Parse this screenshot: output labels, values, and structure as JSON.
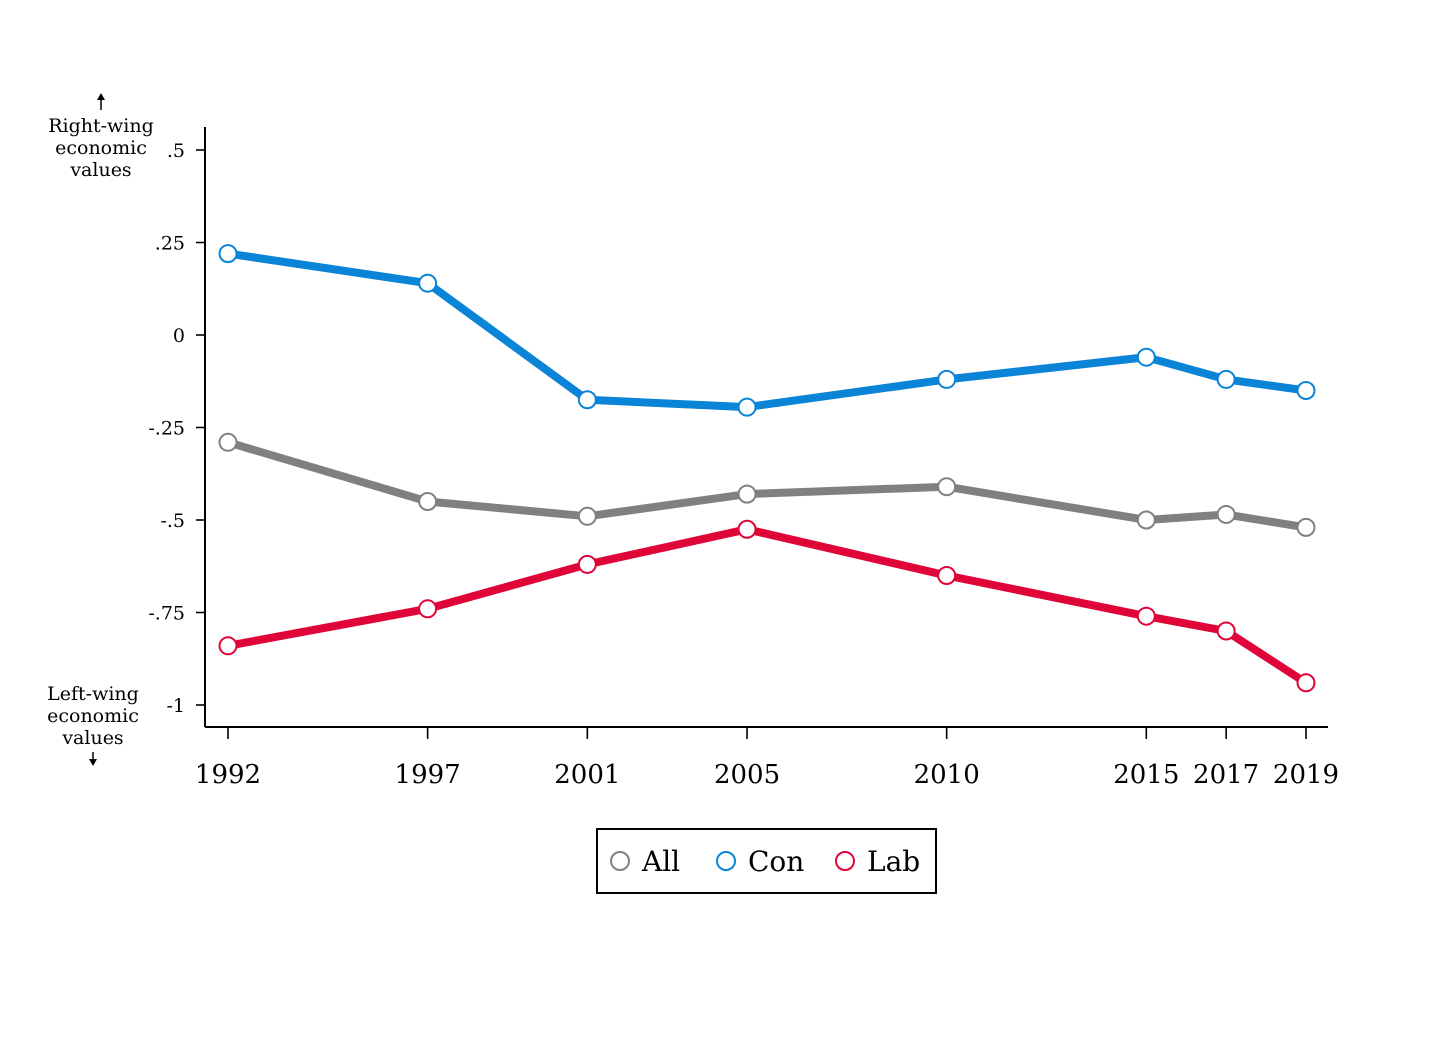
{
  "chart_data": {
    "type": "line",
    "x": [
      1992,
      1997,
      2001,
      2005,
      2010,
      2015,
      2017,
      2019
    ],
    "ylim": [
      -1.06,
      0.56
    ],
    "yticks": [
      ".5",
      ".25",
      "0",
      "-.25",
      "-.5",
      "-.75",
      "-1"
    ],
    "ytick_values": [
      0.5,
      0.25,
      0,
      -0.25,
      -0.5,
      -0.75,
      -1
    ],
    "y_top_note": [
      "Right-wing",
      "economic",
      "values"
    ],
    "y_bottom_note": [
      "Left-wing",
      "economic",
      "values"
    ],
    "legend_position": "bottom-center",
    "grid": false,
    "series": [
      {
        "name": "All",
        "color": "#808080",
        "values": [
          -0.29,
          -0.45,
          -0.49,
          -0.43,
          -0.41,
          -0.5,
          -0.485,
          -0.52
        ]
      },
      {
        "name": "Con",
        "color": "#0a84d6",
        "values": [
          0.22,
          0.14,
          -0.175,
          -0.195,
          -0.12,
          -0.06,
          -0.12,
          -0.15
        ]
      },
      {
        "name": "Lab",
        "color": "#e00538",
        "values": [
          -0.84,
          -0.74,
          -0.62,
          -0.525,
          -0.65,
          -0.76,
          -0.8,
          -0.94
        ]
      }
    ]
  }
}
